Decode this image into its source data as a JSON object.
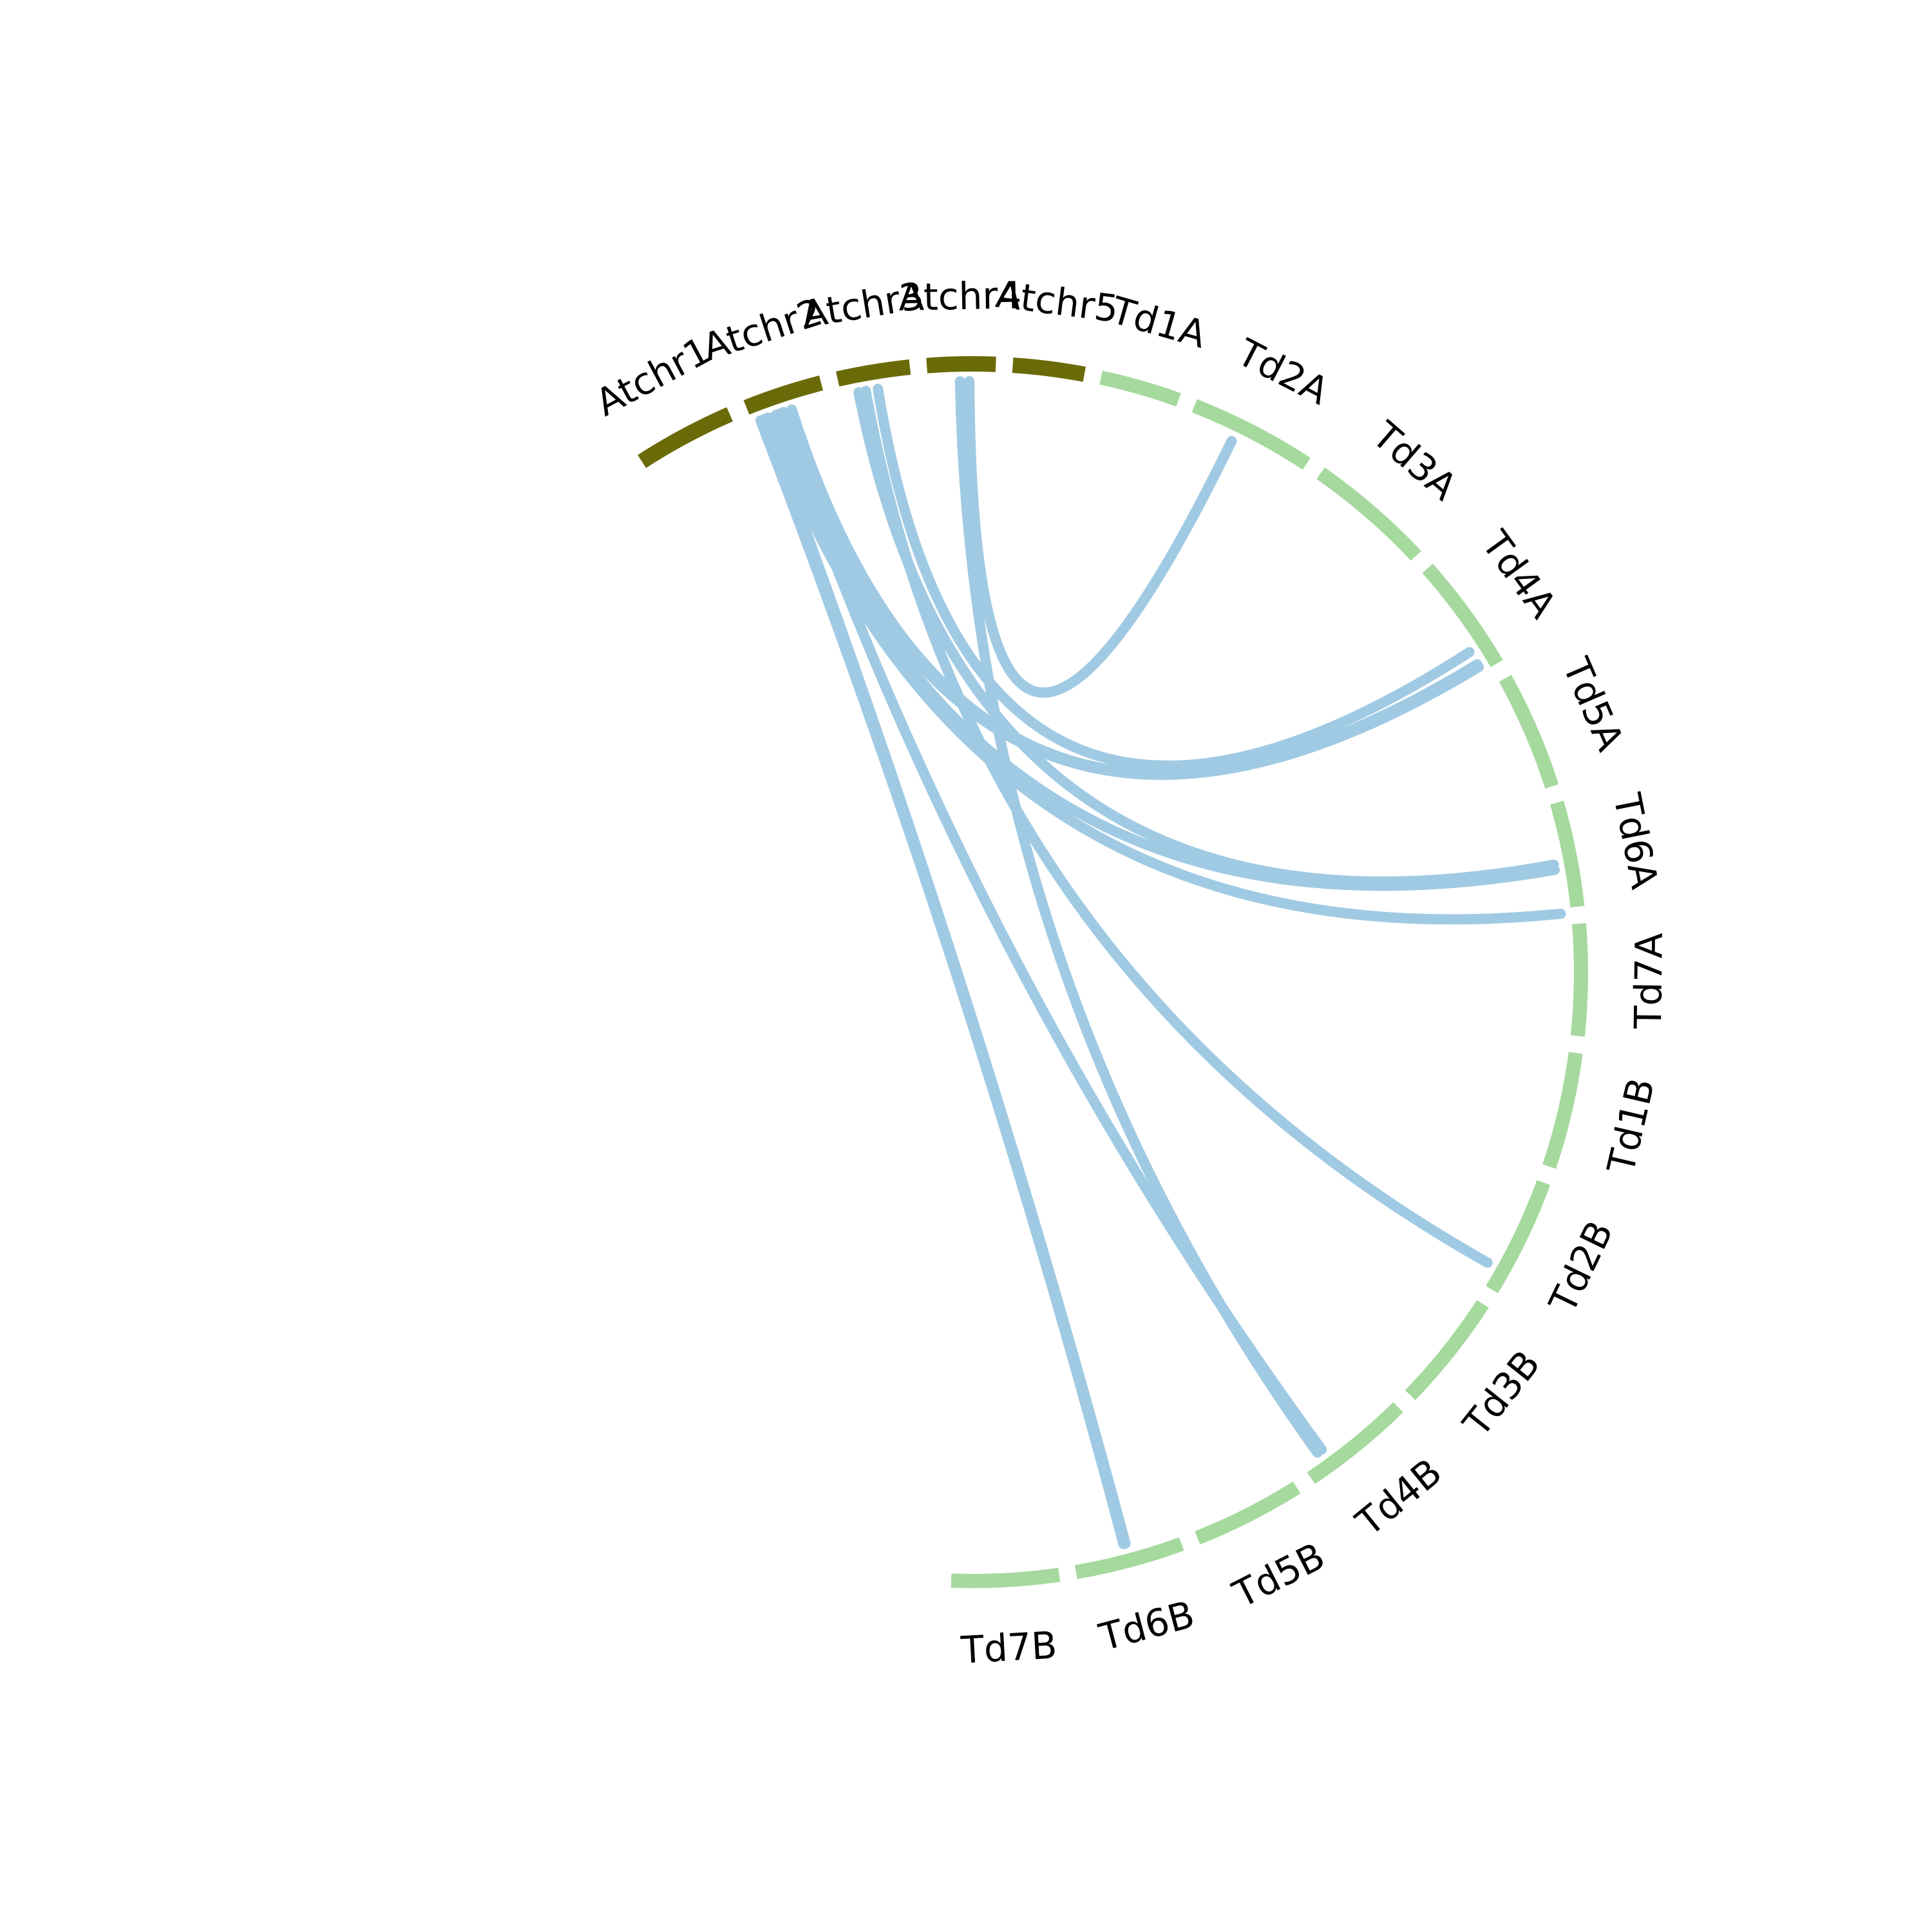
{
  "diagram": {
    "type": "circos",
    "colors": {
      "atchr": "#6b6a08",
      "td": "#a5d99d",
      "link": "#a0cae3"
    },
    "segments": [
      {
        "id": "atchr1",
        "label": "Atchr1",
        "group": "atchr"
      },
      {
        "id": "atchr2",
        "label": "Atchr2",
        "group": "atchr"
      },
      {
        "id": "atchr3",
        "label": "Atchr3",
        "group": "atchr"
      },
      {
        "id": "atchr4",
        "label": "Atchr4",
        "group": "atchr"
      },
      {
        "id": "atchr5",
        "label": "Atchr5",
        "group": "atchr"
      },
      {
        "id": "td1a",
        "label": "Td1A",
        "group": "td"
      },
      {
        "id": "td2a",
        "label": "Td2A",
        "group": "td"
      },
      {
        "id": "td3a",
        "label": "Td3A",
        "group": "td"
      },
      {
        "id": "td4a",
        "label": "Td4A",
        "group": "td"
      },
      {
        "id": "td5a",
        "label": "Td5A",
        "group": "td"
      },
      {
        "id": "td6a",
        "label": "Td6A",
        "group": "td"
      },
      {
        "id": "td7a",
        "label": "Td7A",
        "group": "td"
      },
      {
        "id": "td1b",
        "label": "Td1B",
        "group": "td"
      },
      {
        "id": "td2b",
        "label": "Td2B",
        "group": "td"
      },
      {
        "id": "td3b",
        "label": "Td3B",
        "group": "td"
      },
      {
        "id": "td4b",
        "label": "Td4B",
        "group": "td"
      },
      {
        "id": "td5b",
        "label": "Td5B",
        "group": "td"
      },
      {
        "id": "td6b",
        "label": "Td6B",
        "group": "td"
      },
      {
        "id": "td7b",
        "label": "Td7B",
        "group": "td"
      }
    ],
    "links": [
      {
        "from": "atchr4",
        "to": "td2a"
      },
      {
        "from": "atchr4",
        "to": "td4b"
      },
      {
        "from": "atchr3",
        "to": "td4a"
      },
      {
        "from": "atchr3",
        "to": "td6a"
      },
      {
        "from": "atchr3",
        "to": "td2b"
      },
      {
        "from": "atchr2",
        "to": "td4a"
      },
      {
        "from": "atchr2",
        "to": "td4a"
      },
      {
        "from": "atchr2",
        "to": "td6a"
      },
      {
        "from": "atchr2",
        "to": "td7a"
      },
      {
        "from": "atchr2",
        "to": "td4b"
      },
      {
        "from": "atchr2",
        "to": "td6b"
      },
      {
        "from": "atchr2",
        "to": "td6b"
      }
    ]
  }
}
